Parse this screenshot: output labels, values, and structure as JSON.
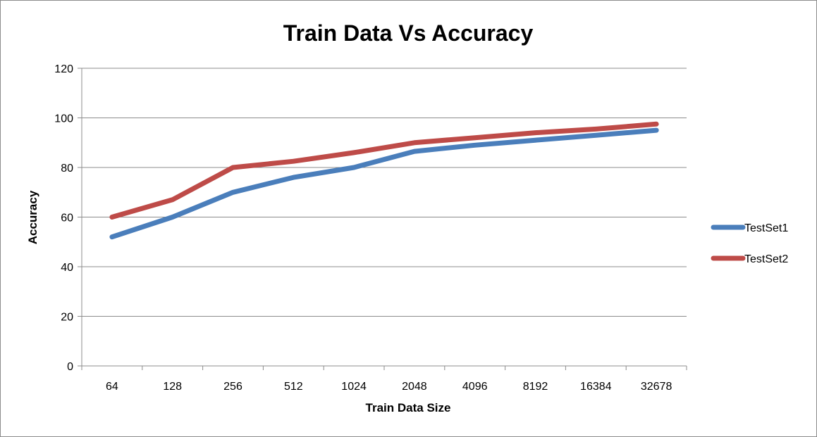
{
  "chart_data": {
    "type": "line",
    "title": "Train Data Vs Accuracy",
    "xlabel": "Train Data Size",
    "ylabel": "Accuracy",
    "categories": [
      "64",
      "128",
      "256",
      "512",
      "1024",
      "2048",
      "4096",
      "8192",
      "16384",
      "32678"
    ],
    "ylim": [
      0,
      120
    ],
    "yticks": [
      "0",
      "20",
      "40",
      "60",
      "80",
      "100",
      "120"
    ],
    "grid": true,
    "legend_position": "right",
    "series": [
      {
        "name": "TestSet1",
        "color": "#4a7ebb",
        "values": [
          52,
          60,
          70,
          76,
          80,
          86.5,
          89,
          91,
          93,
          95
        ]
      },
      {
        "name": "TestSet2",
        "color": "#be4b48",
        "values": [
          60,
          67,
          80,
          82.5,
          86,
          90,
          92,
          94,
          95.5,
          97.5
        ]
      }
    ]
  }
}
